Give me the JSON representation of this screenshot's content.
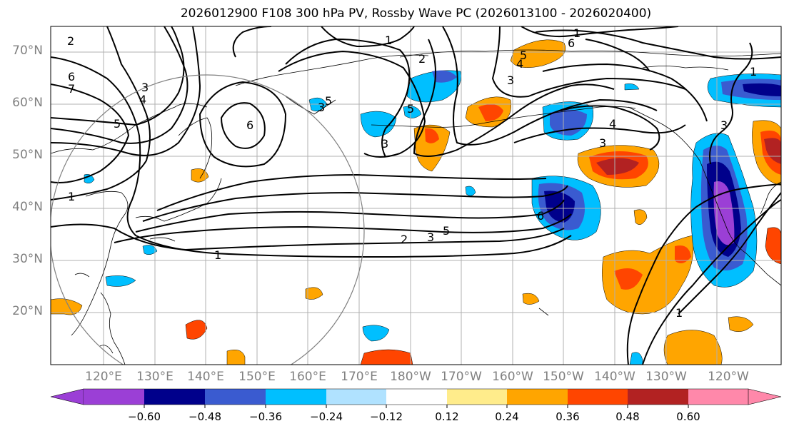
{
  "title": "2026012900 F108 300 hPa PV, Rossby Wave PC (2026013100 - 2026020400)",
  "lat_labels": [
    "70°N",
    "60°N",
    "50°N",
    "40°N",
    "30°N",
    "20°N"
  ],
  "lon_labels": [
    "120°E",
    "130°E",
    "140°E",
    "150°E",
    "160°E",
    "170°E",
    "180°W",
    "170°W",
    "160°W",
    "150°W",
    "140°W",
    "130°W",
    "120°W"
  ],
  "colorbar": {
    "ticks": [
      "−0.60",
      "−0.48",
      "−0.36",
      "−0.24",
      "−0.12",
      "0.12",
      "0.24",
      "0.36",
      "0.48",
      "0.60"
    ],
    "colors": [
      "#9b3fd6",
      "#00008b",
      "#3a5bd0",
      "#00bfff",
      "#b0e2ff",
      "#ffffff",
      "#ffec8b",
      "#ffa500",
      "#ff4500",
      "#b22222",
      "#ff88aa"
    ]
  },
  "contour_labels": [
    "2",
    "6",
    "7",
    "3",
    "4",
    "5",
    "6",
    "1",
    "1",
    "2",
    "3",
    "5",
    "6",
    "1",
    "3",
    "6",
    "5",
    "4",
    "4",
    "3",
    "3",
    "1",
    "1",
    "1",
    "3",
    "2",
    "3",
    "5",
    "5"
  ],
  "reference_circle": "grey",
  "colors": {
    "contour": "#000000",
    "grid": "#b0b0b0",
    "coast": "#000000",
    "axis_text": "#808080"
  }
}
